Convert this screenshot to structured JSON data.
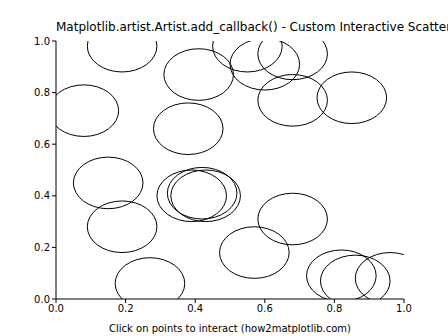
{
  "chart_data": {
    "type": "scatter",
    "title": "Matplotlib.artist.Artist.add_callback() - Custom Interactive Scatter",
    "x_label": "Click on points to interact (how2matplotlib.com)",
    "x": [
      0.19,
      0.41,
      0.55,
      0.6,
      0.68,
      0.08,
      0.68,
      0.85,
      0.38,
      0.15,
      0.39,
      0.42,
      0.43,
      0.19,
      0.68,
      0.57,
      0.27,
      0.82,
      0.86,
      0.96
    ],
    "values": [
      0.98,
      0.87,
      0.98,
      0.91,
      0.95,
      0.73,
      0.77,
      0.78,
      0.66,
      0.45,
      0.4,
      0.41,
      0.4,
      0.28,
      0.31,
      0.18,
      0.06,
      0.09,
      0.07,
      0.08
    ],
    "radius": 0.1,
    "color": "#000000",
    "marker": "circle",
    "xlim": [
      0,
      1
    ],
    "ylim": [
      0,
      1
    ],
    "xticks": [
      {
        "value": 0,
        "label": "0.0"
      },
      {
        "value": 0.2,
        "label": "0.2"
      },
      {
        "value": 0.4,
        "label": "0.4"
      },
      {
        "value": 0.6,
        "label": "0.6"
      },
      {
        "value": 0.8,
        "label": "0.8"
      },
      {
        "value": 1,
        "label": "1.0"
      }
    ],
    "yticks": [
      {
        "value": 0,
        "label": "0.0"
      },
      {
        "value": 0.2,
        "label": "0.2"
      },
      {
        "value": 0.4,
        "label": "0.4"
      },
      {
        "value": 0.6,
        "label": "0.6"
      },
      {
        "value": 0.8,
        "label": "0.8"
      },
      {
        "value": 1,
        "label": "1.0"
      }
    ],
    "grid": false
  }
}
